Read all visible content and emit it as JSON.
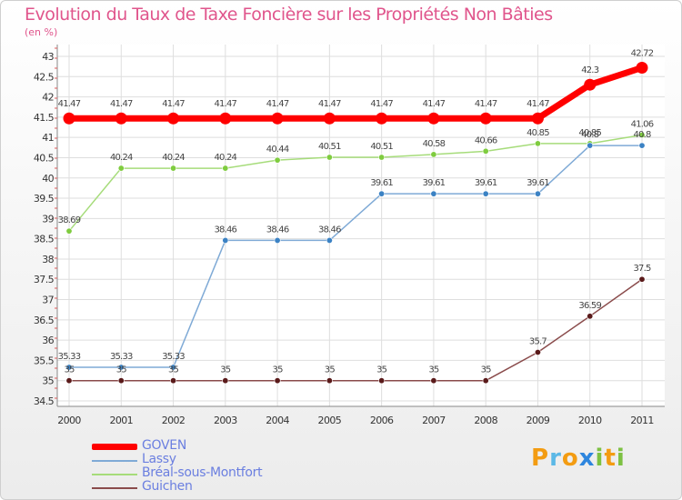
{
  "title": "Evolution du Taux de Taxe Foncière sur les Propriétés Non Bâties",
  "unit": "(en %)",
  "brand": {
    "letters": [
      "P",
      "r",
      "o",
      "x",
      "i",
      "t",
      "i"
    ],
    "colors": [
      "#f39c12",
      "#5bb8e6",
      "#f39c12",
      "#2e86de",
      "#7dc142",
      "#f39c12",
      "#7dc142"
    ]
  },
  "chart_data": {
    "type": "line",
    "categories": [
      "2000",
      "2001",
      "2002",
      "2003",
      "2004",
      "2005",
      "2006",
      "2007",
      "2008",
      "2009",
      "2010",
      "2011"
    ],
    "y_ticks": [
      "34.5",
      "35",
      "35.5",
      "36",
      "36.5",
      "37",
      "37.5",
      "38",
      "38.5",
      "39",
      "39.5",
      "40",
      "40.5",
      "41",
      "41.5",
      "42",
      "42.5",
      "43"
    ],
    "ylim": [
      34.5,
      43
    ],
    "series": [
      {
        "name": "GOVEN",
        "color": "#ff0000",
        "width": 7,
        "values": [
          41.47,
          41.47,
          41.47,
          41.47,
          41.47,
          41.47,
          41.47,
          41.47,
          41.47,
          41.47,
          42.3,
          42.72
        ],
        "labels": [
          "41.47",
          "41.47",
          "41.47",
          "41.47",
          "41.47",
          "41.47",
          "41.47",
          "41.47",
          "41.47",
          "41.47",
          "42.3",
          "42.72"
        ]
      },
      {
        "name": "Lassy",
        "color": "#7faad6",
        "point": "#3b82c4",
        "width": 1.5,
        "values": [
          35.33,
          35.33,
          35.33,
          38.46,
          38.46,
          38.46,
          39.61,
          39.61,
          39.61,
          39.61,
          40.8,
          40.8
        ],
        "labels": [
          "35.33",
          "35.33",
          "35.33",
          "38.46",
          "38.46",
          "38.46",
          "39.61",
          "39.61",
          "39.61",
          "39.61",
          "40.8",
          "40.8"
        ]
      },
      {
        "name": "Bréal-sous-Montfort",
        "color": "#a6dc7a",
        "point": "#7fcc3f",
        "width": 1.5,
        "values": [
          38.69,
          40.24,
          40.24,
          40.24,
          40.44,
          40.51,
          40.51,
          40.58,
          40.66,
          40.85,
          40.85,
          41.06
        ],
        "labels": [
          "38.69",
          "40.24",
          "40.24",
          "40.24",
          "40.44",
          "40.51",
          "40.51",
          "40.58",
          "40.66",
          "40.85",
          "40.85",
          "41.06"
        ]
      },
      {
        "name": "Guichen",
        "color": "#8a4b4b",
        "point": "#5a1a1a",
        "width": 1.5,
        "values": [
          35,
          35,
          35,
          35,
          35,
          35,
          35,
          35,
          35,
          35.7,
          36.59,
          37.5
        ],
        "labels": [
          "35",
          "35",
          "35",
          "35",
          "35",
          "35",
          "35",
          "35",
          "35",
          "35.7",
          "36.59",
          "37.5"
        ]
      }
    ]
  }
}
